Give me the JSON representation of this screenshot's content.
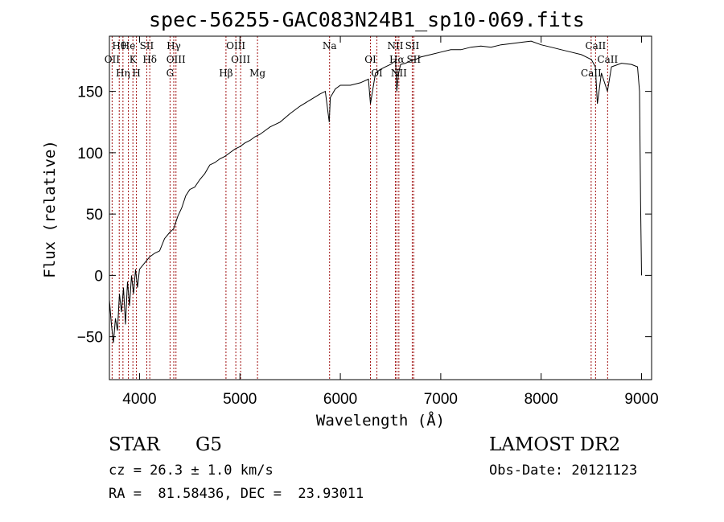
{
  "chart_data": {
    "type": "line",
    "title": "spec-56255-GAC083N24B1_sp10-069.fits",
    "xlabel": "Wavelength (Å)",
    "ylabel": "Flux (relative)",
    "xlim": [
      3700,
      9100
    ],
    "ylim": [
      -85,
      195
    ],
    "xticks": [
      4000,
      5000,
      6000,
      7000,
      8000,
      9000
    ],
    "yticks": [
      -50,
      0,
      50,
      100,
      150
    ],
    "series": [
      {
        "x": [
          3700,
          3720,
          3740,
          3760,
          3780,
          3800,
          3820,
          3840,
          3860,
          3880,
          3900,
          3920,
          3940,
          3960,
          3980,
          4000,
          4050,
          4100,
          4150,
          4200,
          4250,
          4300,
          4340,
          4380,
          4420,
          4460,
          4500,
          4550,
          4600,
          4650,
          4700,
          4750,
          4800,
          4850,
          4900,
          4950,
          5000,
          5050,
          5100,
          5150,
          5200,
          5250,
          5300,
          5400,
          5500,
          5600,
          5700,
          5800,
          5850,
          5890,
          5900,
          5950,
          6000,
          6100,
          6200,
          6280,
          6300,
          6350,
          6400,
          6450,
          6500,
          6550,
          6562,
          6580,
          6600,
          6650,
          6700,
          6750,
          6800,
          6900,
          7000,
          7100,
          7200,
          7300,
          7400,
          7500,
          7600,
          7700,
          7800,
          7900,
          8000,
          8100,
          8200,
          8300,
          8400,
          8450,
          8500,
          8540,
          8560,
          8600,
          8660,
          8700,
          8800,
          8900,
          8960,
          8980,
          8990,
          9000
        ],
        "values": [
          -20,
          -40,
          -55,
          -35,
          -45,
          -15,
          -30,
          -10,
          -40,
          -5,
          -25,
          0,
          -15,
          5,
          -10,
          5,
          10,
          15,
          18,
          20,
          30,
          35,
          38,
          48,
          55,
          65,
          70,
          72,
          78,
          83,
          90,
          92,
          95,
          97,
          100,
          103,
          105,
          108,
          110,
          113,
          115,
          118,
          121,
          125,
          132,
          138,
          143,
          148,
          150,
          125,
          145,
          152,
          155,
          155,
          157,
          160,
          140,
          165,
          168,
          170,
          172,
          175,
          150,
          165,
          172,
          173,
          175,
          176,
          178,
          180,
          182,
          184,
          184,
          186,
          187,
          186,
          188,
          189,
          190,
          191,
          188,
          186,
          184,
          182,
          180,
          178,
          176,
          170,
          140,
          165,
          150,
          170,
          173,
          172,
          170,
          150,
          60,
          0
        ]
      }
    ],
    "lines": [
      {
        "label": "Hθ",
        "x": 3798
      },
      {
        "label": "OII",
        "x": 3727
      },
      {
        "label": "Hη",
        "x": 3835
      },
      {
        "label": "He",
        "x": 3889
      },
      {
        "label": "K",
        "x": 3934
      },
      {
        "label": "H",
        "x": 3969
      },
      {
        "label": "SII",
        "x": 4072
      },
      {
        "label": "Hδ",
        "x": 4102
      },
      {
        "label": "G",
        "x": 4304
      },
      {
        "label": "Hγ",
        "x": 4341
      },
      {
        "label": "OIII",
        "x": 4363
      },
      {
        "label": "Hβ",
        "x": 4861
      },
      {
        "label": "OIII",
        "x": 4959
      },
      {
        "label": "OIII",
        "x": 5007
      },
      {
        "label": "Mg",
        "x": 5175
      },
      {
        "label": "Na",
        "x": 5893
      },
      {
        "label": "OI",
        "x": 6300
      },
      {
        "label": "OI",
        "x": 6364
      },
      {
        "label": "NII",
        "x": 6548
      },
      {
        "label": "Hα",
        "x": 6563
      },
      {
        "label": "NII",
        "x": 6583
      },
      {
        "label": "SII",
        "x": 6716
      },
      {
        "label": "SII",
        "x": 6731
      },
      {
        "label": "CaII",
        "x": 8498
      },
      {
        "label": "CaII",
        "x": 8542
      },
      {
        "label": "CaII",
        "x": 8662
      }
    ],
    "line_color": "#a01010"
  },
  "info": {
    "class": "STAR",
    "subclass": "G5",
    "survey": "LAMOST DR2",
    "cz": "cz = 26.3 ± 1.0 km/s",
    "obs_date": "Obs-Date: 20121123",
    "coords": "RA =  81.58436, DEC =  23.93011"
  }
}
